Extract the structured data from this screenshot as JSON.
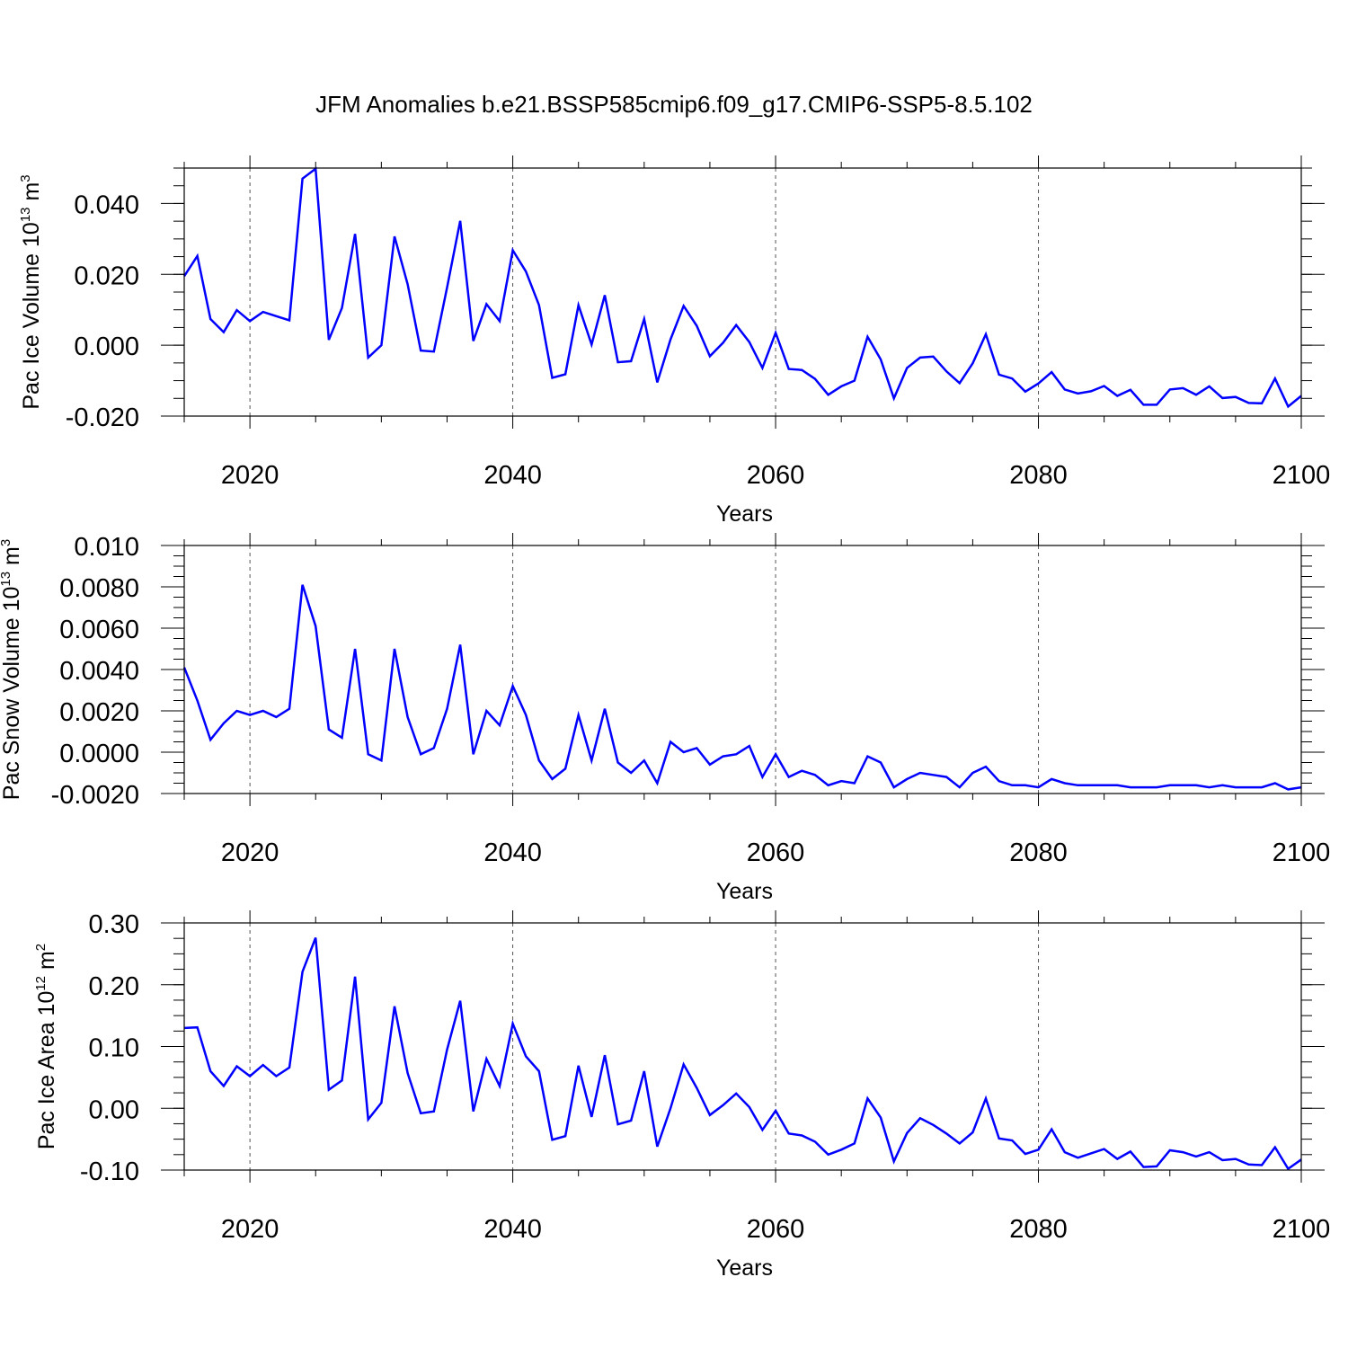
{
  "title": "JFM Anomalies b.e21.BSSP585cmip6.f09_g17.CMIP6-SSP5-8.5.102",
  "line_color": "#0000ff",
  "chart_data": [
    {
      "type": "line",
      "name": "ice-volume",
      "ylabel_main": "Pac Ice Volume 10",
      "ylabel_exp": "13",
      "ylabel_unit": " m",
      "ylabel_unit_exp": "3",
      "xlabel": "Years",
      "xlim": [
        2015,
        2100
      ],
      "ylim": [
        -0.02,
        0.05
      ],
      "xticks": [
        2020,
        2040,
        2060,
        2080,
        2100
      ],
      "xtick_labels": [
        "2020",
        "2040",
        "2060",
        "2080",
        "2100"
      ],
      "yticks": [
        -0.02,
        0.0,
        0.02,
        0.04
      ],
      "ytick_labels": [
        "-0.020",
        "0.000",
        "0.020",
        "0.040"
      ],
      "yminor_step": 0.005,
      "grid_years": [
        2020,
        2040,
        2060,
        2080
      ],
      "start_year": 2015,
      "values": [
        0.0195,
        0.0252,
        0.0074,
        0.0037,
        0.0099,
        0.0068,
        0.0094,
        0.0082,
        0.007,
        0.047,
        0.0498,
        0.0015,
        0.0105,
        0.0314,
        -0.0035,
        0.0,
        0.0307,
        0.0172,
        -0.0015,
        -0.0018,
        0.0163,
        0.0351,
        0.0012,
        0.0116,
        0.0068,
        0.0268,
        0.0208,
        0.0113,
        -0.0092,
        -0.0082,
        0.0113,
        0.0002,
        0.0141,
        -0.0048,
        -0.0045,
        0.0074,
        -0.0105,
        0.0016,
        0.0111,
        0.0055,
        -0.0031,
        0.0007,
        0.0057,
        0.0009,
        -0.0064,
        0.0035,
        -0.0067,
        -0.007,
        -0.0095,
        -0.014,
        -0.0116,
        -0.01,
        0.0024,
        -0.004,
        -0.015,
        -0.0064,
        -0.0035,
        -0.0032,
        -0.0074,
        -0.0107,
        -0.0051,
        0.0031,
        -0.0083,
        -0.0094,
        -0.0131,
        -0.0108,
        -0.0076,
        -0.0125,
        -0.0136,
        -0.013,
        -0.0115,
        -0.0143,
        -0.0126,
        -0.0168,
        -0.0168,
        -0.0125,
        -0.0121,
        -0.014,
        -0.0116,
        -0.0149,
        -0.0146,
        -0.0163,
        -0.0164,
        -0.0094,
        -0.0173,
        -0.0143
      ]
    },
    {
      "type": "line",
      "name": "snow-volume",
      "ylabel_main": "Pac Snow Volume 10",
      "ylabel_exp": "13",
      "ylabel_unit": " m",
      "ylabel_unit_exp": "3",
      "xlabel": "Years",
      "xlim": [
        2015,
        2100
      ],
      "ylim": [
        -0.002,
        0.01
      ],
      "xticks": [
        2020,
        2040,
        2060,
        2080,
        2100
      ],
      "xtick_labels": [
        "2020",
        "2040",
        "2060",
        "2080",
        "2100"
      ],
      "yticks": [
        -0.002,
        0.0,
        0.002,
        0.004,
        0.006,
        0.008,
        0.01
      ],
      "ytick_labels": [
        "-0.0020",
        "0.0000",
        "0.0020",
        "0.0040",
        "0.0060",
        "0.0080",
        "0.010"
      ],
      "yminor_step": 0.0005,
      "grid_years": [
        2020,
        2040,
        2060,
        2080
      ],
      "start_year": 2015,
      "values": [
        0.0041,
        0.0025,
        0.0006,
        0.0014,
        0.002,
        0.0018,
        0.002,
        0.0017,
        0.0021,
        0.0081,
        0.0061,
        0.0011,
        0.0007,
        0.005,
        -0.0001,
        -0.0004,
        0.005,
        0.0017,
        -0.0001,
        0.0002,
        0.0021,
        0.0052,
        -0.0001,
        0.002,
        0.0013,
        0.0032,
        0.0018,
        -0.0004,
        -0.0013,
        -0.0008,
        0.0018,
        -0.0004,
        0.0021,
        -0.0005,
        -0.001,
        -0.0004,
        -0.0015,
        0.0005,
        0.0,
        0.0002,
        -0.0006,
        -0.0002,
        -0.0001,
        0.0003,
        -0.0012,
        -0.0001,
        -0.0012,
        -0.0009,
        -0.0011,
        -0.0016,
        -0.0014,
        -0.0015,
        -0.0002,
        -0.0005,
        -0.0017,
        -0.0013,
        -0.001,
        -0.0011,
        -0.0012,
        -0.0017,
        -0.001,
        -0.0007,
        -0.0014,
        -0.0016,
        -0.0016,
        -0.0017,
        -0.0013,
        -0.0015,
        -0.0016,
        -0.0016,
        -0.0016,
        -0.0016,
        -0.0017,
        -0.0017,
        -0.0017,
        -0.0016,
        -0.0016,
        -0.0016,
        -0.0017,
        -0.0016,
        -0.0017,
        -0.0017,
        -0.0017,
        -0.0015,
        -0.0018,
        -0.0017
      ]
    },
    {
      "type": "line",
      "name": "ice-area",
      "ylabel_main": "Pac Ice Area 10",
      "ylabel_exp": "12",
      "ylabel_unit": " m",
      "ylabel_unit_exp": "2",
      "xlabel": "Years",
      "xlim": [
        2015,
        2100
      ],
      "ylim": [
        -0.1,
        0.3
      ],
      "xticks": [
        2020,
        2040,
        2060,
        2080,
        2100
      ],
      "xtick_labels": [
        "2020",
        "2040",
        "2060",
        "2080",
        "2100"
      ],
      "yticks": [
        -0.1,
        0.0,
        0.1,
        0.2,
        0.3
      ],
      "ytick_labels": [
        "-0.10",
        "0.00",
        "0.10",
        "0.20",
        "0.30"
      ],
      "yminor_step": 0.025,
      "grid_years": [
        2020,
        2040,
        2060,
        2080
      ],
      "start_year": 2015,
      "values": [
        0.13,
        0.131,
        0.06,
        0.036,
        0.068,
        0.052,
        0.07,
        0.052,
        0.066,
        0.221,
        0.276,
        0.03,
        0.045,
        0.213,
        -0.018,
        0.009,
        0.165,
        0.057,
        -0.008,
        -0.005,
        0.095,
        0.174,
        -0.005,
        0.08,
        0.036,
        0.137,
        0.084,
        0.06,
        -0.051,
        -0.045,
        0.069,
        -0.014,
        0.086,
        -0.026,
        -0.02,
        0.06,
        -0.062,
        0.0,
        0.071,
        0.033,
        -0.011,
        0.005,
        0.024,
        0.002,
        -0.035,
        -0.004,
        -0.041,
        -0.044,
        -0.054,
        -0.075,
        -0.067,
        -0.057,
        0.016,
        -0.015,
        -0.086,
        -0.04,
        -0.016,
        -0.027,
        -0.041,
        -0.057,
        -0.039,
        0.016,
        -0.049,
        -0.052,
        -0.074,
        -0.067,
        -0.034,
        -0.071,
        -0.08,
        -0.073,
        -0.066,
        -0.082,
        -0.07,
        -0.095,
        -0.094,
        -0.068,
        -0.071,
        -0.078,
        -0.071,
        -0.084,
        -0.082,
        -0.091,
        -0.092,
        -0.063,
        -0.098,
        -0.083
      ]
    }
  ]
}
